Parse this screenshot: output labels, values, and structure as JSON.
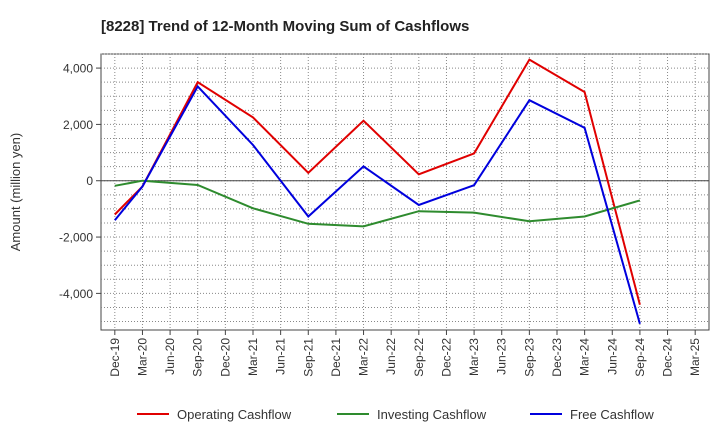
{
  "chart_data": {
    "type": "line",
    "title": "[8228]  Trend of 12-Month Moving Sum of Cashflows",
    "xlabel": "",
    "ylabel": "Amount (million yen)",
    "ylim": [
      -5300,
      4500
    ],
    "yticks": [
      -4000,
      -2000,
      0,
      2000,
      4000
    ],
    "ytick_labels": [
      "-4,000",
      "-2,000",
      "0",
      "2,000",
      "4,000"
    ],
    "x_tick_labels": [
      "Dec-19",
      "Mar-20",
      "Jun-20",
      "Sep-20",
      "Dec-20",
      "Mar-21",
      "Jun-21",
      "Sep-21",
      "Dec-21",
      "Mar-22",
      "Jun-22",
      "Sep-22",
      "Dec-22",
      "Mar-23",
      "Jun-23",
      "Sep-23",
      "Dec-23",
      "Mar-24",
      "Jun-24",
      "Sep-24",
      "Dec-24",
      "Mar-25"
    ],
    "grid": true,
    "legend_position": "bottom",
    "series": [
      {
        "name": "Operating Cashflow",
        "color": "#e00000",
        "points": [
          {
            "x": "Dec-19",
            "y": -1200
          },
          {
            "x": "Mar-20",
            "y": -200
          },
          {
            "x": "Sep-20",
            "y": 3500
          },
          {
            "x": "Mar-21",
            "y": 2250
          },
          {
            "x": "Sep-21",
            "y": 280
          },
          {
            "x": "Mar-22",
            "y": 2130
          },
          {
            "x": "Sep-22",
            "y": 230
          },
          {
            "x": "Mar-23",
            "y": 970
          },
          {
            "x": "Sep-23",
            "y": 4300
          },
          {
            "x": "Mar-24",
            "y": 3150
          },
          {
            "x": "Sep-24",
            "y": -4400
          }
        ]
      },
      {
        "name": "Investing Cashflow",
        "color": "#2e8b2e",
        "points": [
          {
            "x": "Dec-19",
            "y": -180
          },
          {
            "x": "Mar-20",
            "y": 0
          },
          {
            "x": "Sep-20",
            "y": -150
          },
          {
            "x": "Mar-21",
            "y": -980
          },
          {
            "x": "Sep-21",
            "y": -1530
          },
          {
            "x": "Mar-22",
            "y": -1620
          },
          {
            "x": "Sep-22",
            "y": -1080
          },
          {
            "x": "Mar-23",
            "y": -1130
          },
          {
            "x": "Sep-23",
            "y": -1440
          },
          {
            "x": "Mar-24",
            "y": -1270
          },
          {
            "x": "Sep-24",
            "y": -700
          }
        ]
      },
      {
        "name": "Free Cashflow",
        "color": "#0000dd",
        "points": [
          {
            "x": "Dec-19",
            "y": -1400
          },
          {
            "x": "Mar-20",
            "y": -200
          },
          {
            "x": "Sep-20",
            "y": 3350
          },
          {
            "x": "Mar-21",
            "y": 1270
          },
          {
            "x": "Sep-21",
            "y": -1270
          },
          {
            "x": "Mar-22",
            "y": 510
          },
          {
            "x": "Sep-22",
            "y": -860
          },
          {
            "x": "Mar-23",
            "y": -160
          },
          {
            "x": "Sep-23",
            "y": 2860
          },
          {
            "x": "Mar-24",
            "y": 1880
          },
          {
            "x": "Sep-24",
            "y": -5080
          }
        ]
      }
    ]
  }
}
